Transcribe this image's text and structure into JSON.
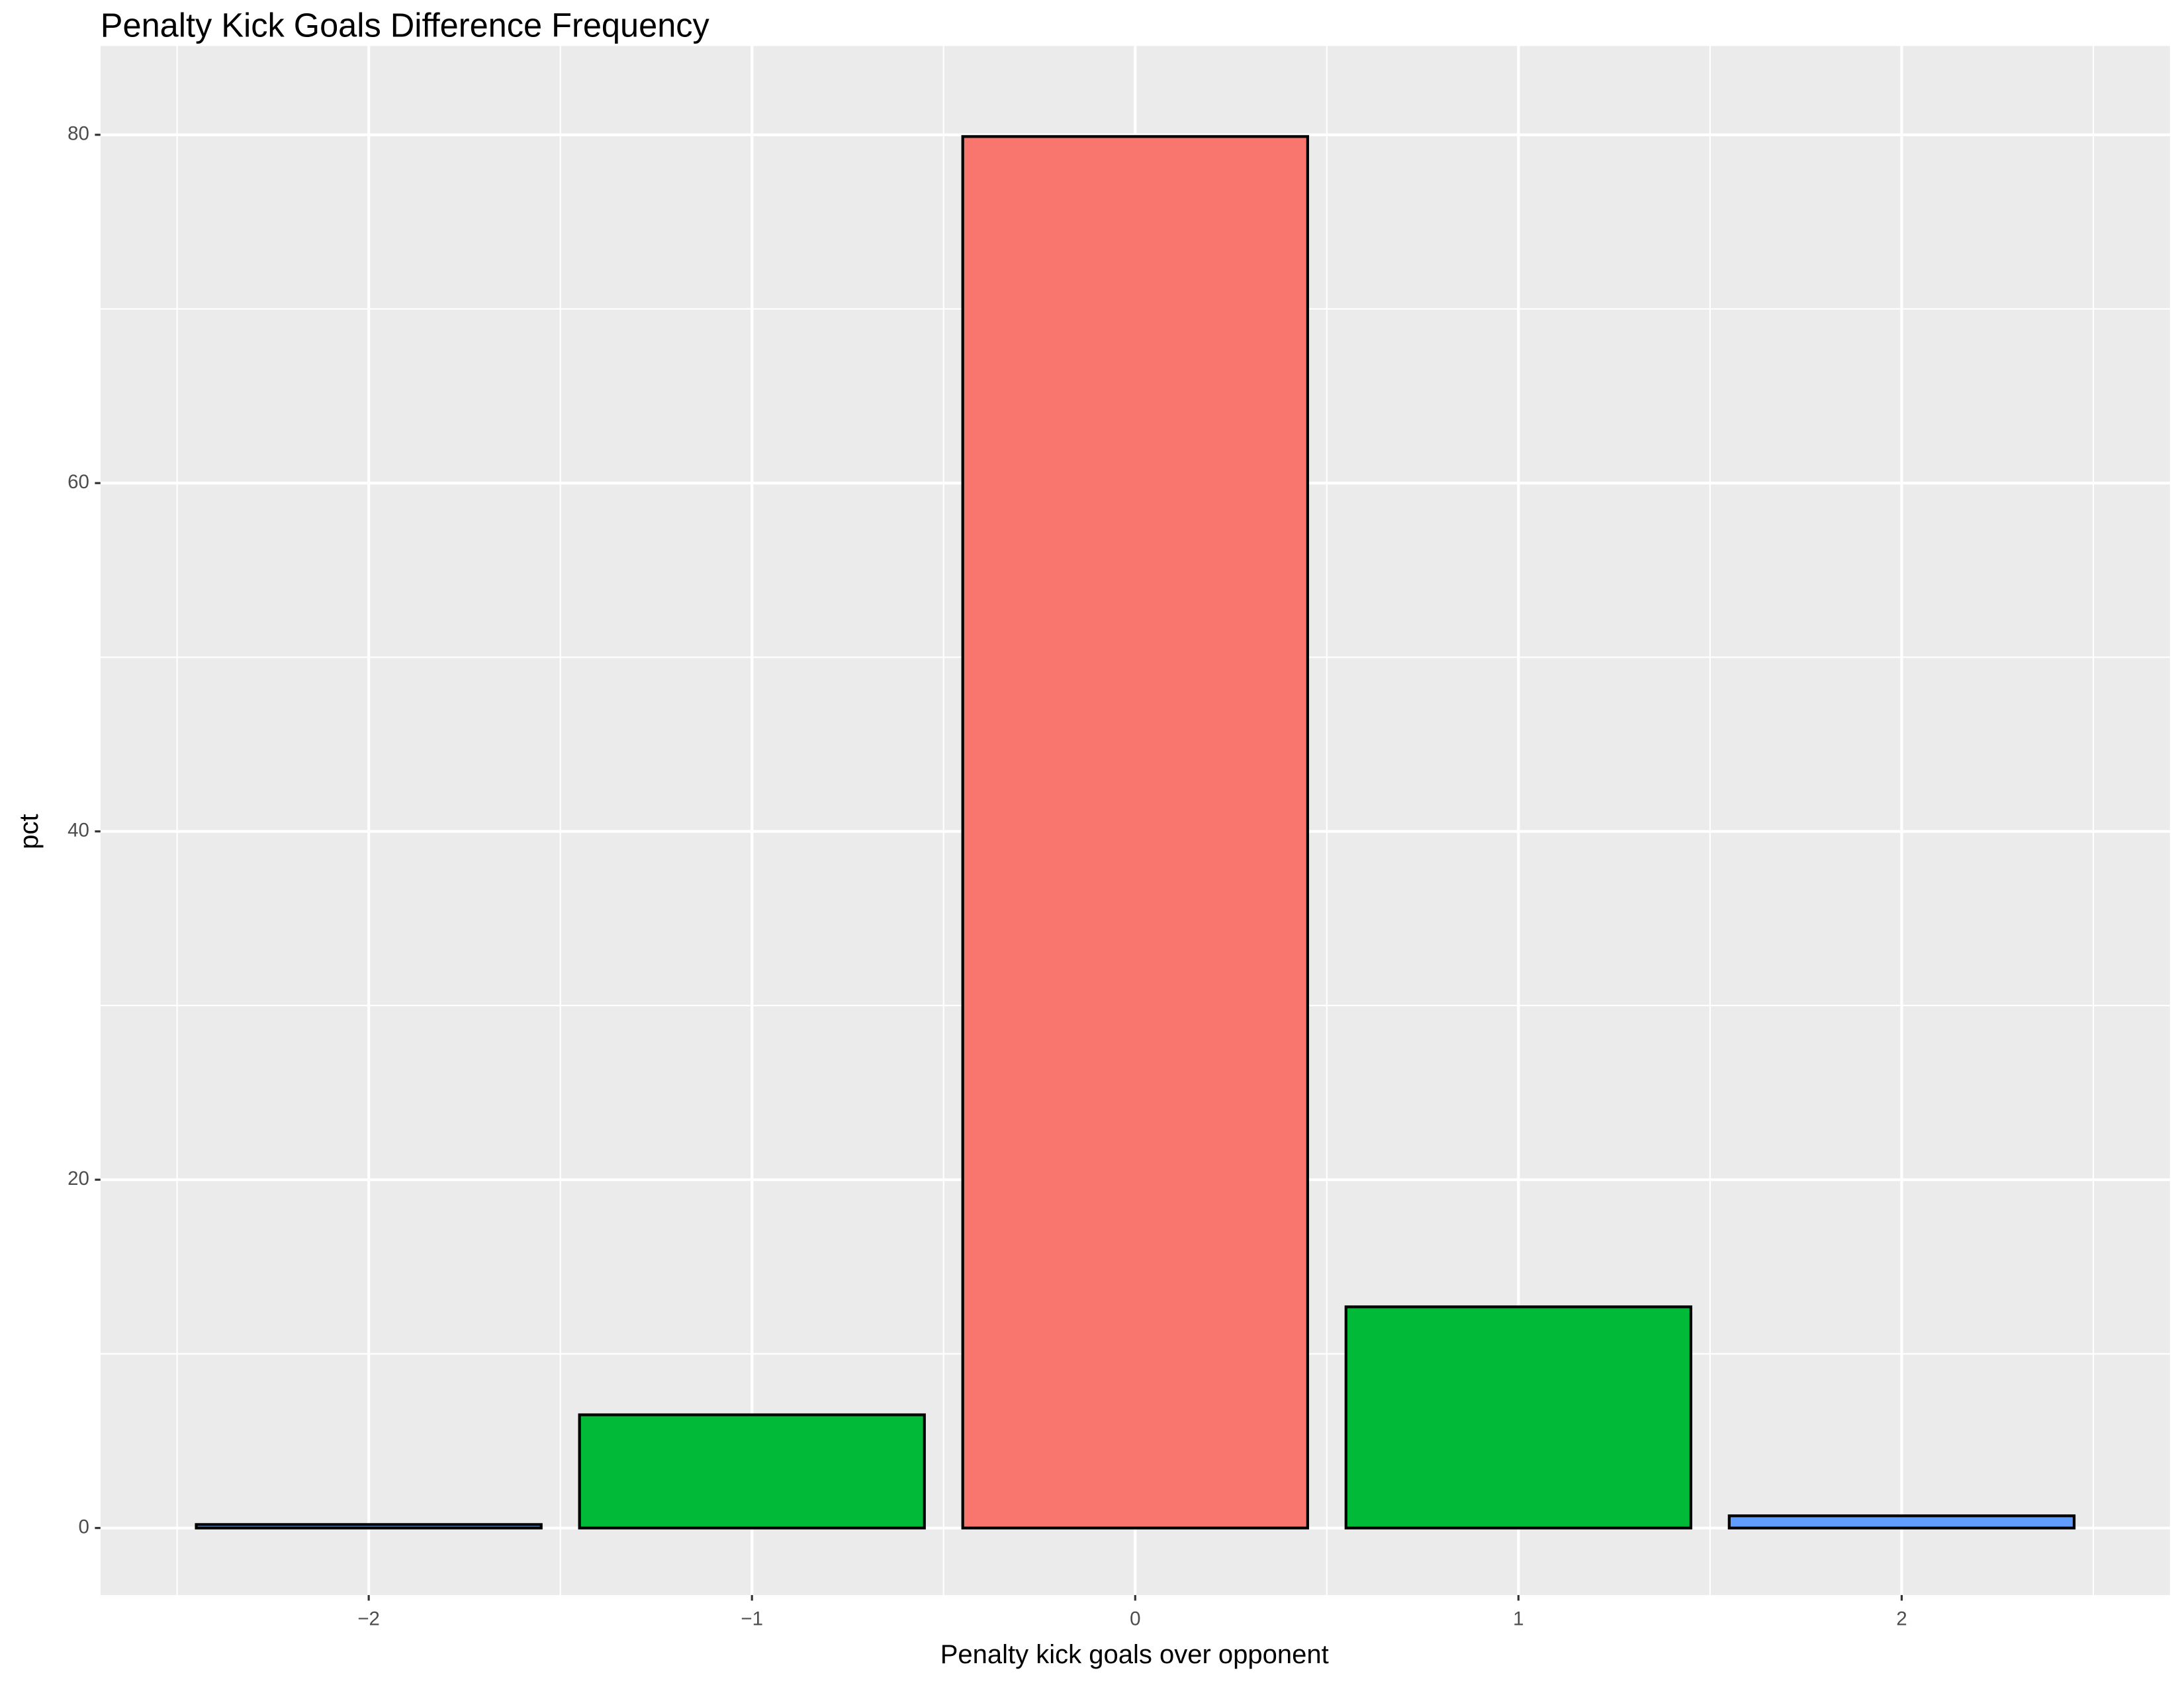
{
  "chart_data": {
    "type": "bar",
    "title": "Penalty Kick Goals Difference Frequency",
    "x_label": "Penalty kick goals over opponent",
    "y_label": "pct",
    "x": [
      -2,
      -1,
      0,
      1,
      2
    ],
    "values": [
      0.2,
      6.5,
      79.9,
      12.7,
      0.7
    ],
    "colors": [
      "#619CFF",
      "#00BA38",
      "#F8766D",
      "#00BA38",
      "#619CFF"
    ],
    "bar_width": 0.9,
    "xlim": [
      -2.7,
      2.7
    ],
    "ylim": [
      -3.85,
      85.1
    ],
    "xticks": [
      {
        "value": -2,
        "label": "−2"
      },
      {
        "value": -1,
        "label": "−1"
      },
      0,
      1,
      2
    ],
    "yticks": [
      0,
      20,
      40,
      60,
      80
    ],
    "grid": true
  }
}
